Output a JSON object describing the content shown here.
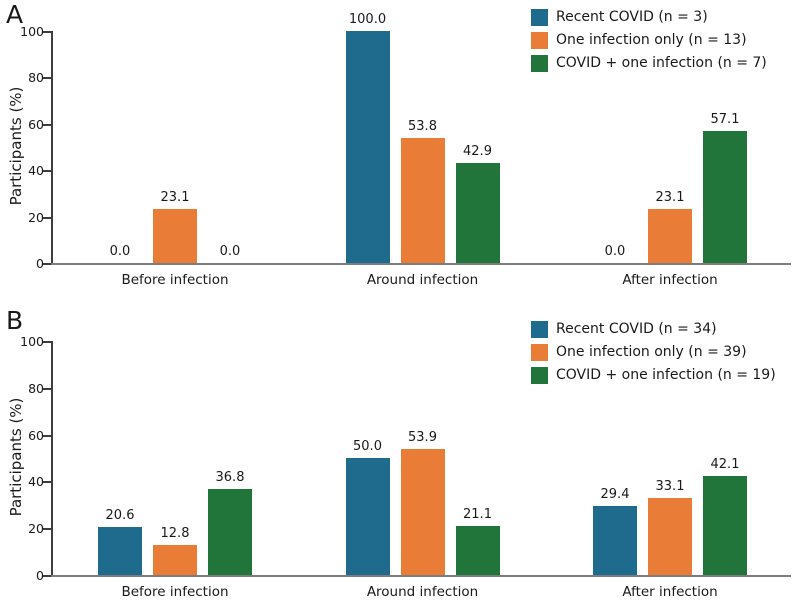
{
  "figure": {
    "panels": [
      {
        "letter": "A",
        "ylabel": "Participants (%)"
      },
      {
        "letter": "B",
        "ylabel": "Participants (%)"
      }
    ]
  },
  "colors": {
    "recent_covid": "#1e6b8e",
    "one_infection_only": "#e97c37",
    "covid_plus_one_infection": "#21753b",
    "axis": "#3d3d3d",
    "baseline": "#7d7d7d",
    "text": "#1a1a1a"
  },
  "chart_data": [
    {
      "type": "bar",
      "panel": "A",
      "title": "",
      "categories": [
        "Before infection",
        "Around infection",
        "After infection"
      ],
      "series": [
        {
          "name": "Recent COVID (n = 3)",
          "color": "#1e6b8e",
          "values": [
            0.0,
            100.0,
            0.0
          ]
        },
        {
          "name": "One infection only (n = 13)",
          "color": "#e97c37",
          "values": [
            23.1,
            53.8,
            23.1
          ]
        },
        {
          "name": "COVID + one infection (n = 7)",
          "color": "#21753b",
          "values": [
            0.0,
            42.9,
            57.1
          ]
        }
      ],
      "xlabel": "",
      "ylabel": "Participants (%)",
      "ylim": [
        0,
        100
      ],
      "yticks": [
        0,
        20,
        40,
        60,
        80,
        100
      ],
      "grid": false,
      "legend_position": "top-right",
      "value_labels_shown": true,
      "value_label_format": "one-decimal"
    },
    {
      "type": "bar",
      "panel": "B",
      "title": "",
      "categories": [
        "Before infection",
        "Around infection",
        "After infection"
      ],
      "series": [
        {
          "name": "Recent COVID (n = 34)",
          "color": "#1e6b8e",
          "values": [
            20.6,
            50.0,
            29.4
          ]
        },
        {
          "name": "One infection only (n = 39)",
          "color": "#e97c37",
          "values": [
            12.8,
            53.9,
            33.1
          ]
        },
        {
          "name": "COVID + one infection (n = 19)",
          "color": "#21753b",
          "values": [
            36.8,
            21.1,
            42.1
          ]
        }
      ],
      "xlabel": "",
      "ylabel": "Participants (%)",
      "ylim": [
        0,
        100
      ],
      "yticks": [
        0,
        20,
        40,
        60,
        80,
        100
      ],
      "grid": false,
      "legend_position": "top-right",
      "value_labels_shown": true,
      "value_label_format": "one-decimal"
    }
  ]
}
